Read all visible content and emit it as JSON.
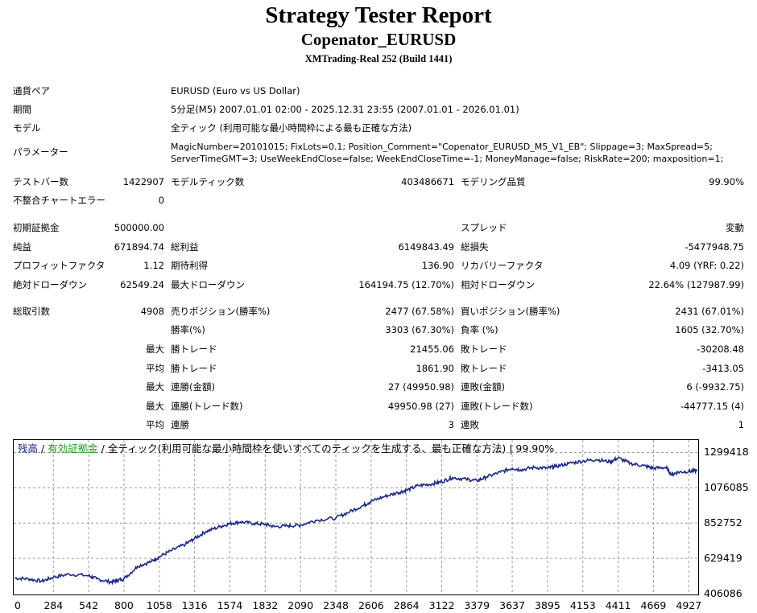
{
  "header": {
    "title": "Strategy Tester Report",
    "expert": "Copenator_EURUSD",
    "server": "XMTrading-Real 252 (Build 1441)"
  },
  "info": {
    "symbol_label": "通貨ペア",
    "symbol_value": "EURUSD (Euro vs US Dollar)",
    "period_label": "期間",
    "period_value": "5分足(M5) 2007.01.01 02:00 - 2025.12.31 23:55 (2007.01.01 - 2026.01.01)",
    "model_label": "モデル",
    "model_value": "全ティック (利用可能な最小時間枠による最も正確な方法)",
    "params_label": "パラメーター",
    "params_line1": "MagicNumber=20101015; FixLots=0.1; Position_Comment=\"Copenator_EURUSD_M5_V1_EB\"; Slippage=3; MaxSpread=5;",
    "params_line2": "ServerTimeGMT=3; UseWeekEndClose=false; WeekEndCloseTime=-1; MoneyManage=false; RiskRate=200; maxposition=1;"
  },
  "stats": {
    "bars_label": "テストバー数",
    "bars_value": "1422907",
    "ticks_label": "モデルティック数",
    "ticks_value": "403486671",
    "quality_label": "モデリング品質",
    "quality_value": "99.90%",
    "mismatch_label": "不整合チャートエラー",
    "mismatch_value": "0",
    "deposit_label": "初期証拠金",
    "deposit_value": "500000.00",
    "spread_label": "スプレッド",
    "spread_value": "変動",
    "net_label": "純益",
    "net_value": "671894.74",
    "gross_profit_label": "総利益",
    "gross_profit_value": "6149843.49",
    "gross_loss_label": "総損失",
    "gross_loss_value": "-5477948.75",
    "pf_label": "プロフィットファクタ",
    "pf_value": "1.12",
    "expected_label": "期待利得",
    "expected_value": "136.90",
    "recovery_label": "リカバリーファクタ",
    "recovery_value": "4.09 (YRF: 0.22)",
    "abs_dd_label": "絶対ドローダウン",
    "abs_dd_value": "62549.24",
    "max_dd_label": "最大ドローダウン",
    "max_dd_value": "164194.75 (12.70%)",
    "rel_dd_label": "相対ドローダウン",
    "rel_dd_value": "22.64% (127987.99)",
    "trades_label": "総取引数",
    "trades_value": "4908",
    "short_label": "売りポジション(勝率%)",
    "short_value": "2477 (67.58%)",
    "long_label": "買いポジション(勝率%)",
    "long_value": "2431 (67.01%)",
    "winrate_label": "勝率(%)",
    "winrate_value": "3303 (67.30%)",
    "lossrate_label": "負率 (%)",
    "lossrate_value": "1605 (32.70%)",
    "largest_label": "最大",
    "largest_win_label": "勝トレード",
    "largest_win_value": "21455.06",
    "largest_loss_label": "敗トレード",
    "largest_loss_value": "-30208.48",
    "average_label": "平均",
    "average_win_label": "勝トレード",
    "average_win_value": "1861.90",
    "average_loss_label": "敗トレード",
    "average_loss_value": "-3413.05",
    "max_cons_label": "最大",
    "max_cons_wins_label": "連勝(金額)",
    "max_cons_wins_value": "27 (49950.98)",
    "max_cons_losses_label": "連敗(金額)",
    "max_cons_losses_value": "6 (-9932.75)",
    "max_cons2_label": "最大",
    "max_cons_profit_label": "連勝(トレード数)",
    "max_cons_profit_value": "49950.98 (27)",
    "max_cons_loss_label": "連敗(トレード数)",
    "max_cons_loss_value": "-44777.15 (4)",
    "avg_cons_label": "平均",
    "avg_cons_wins_label": "連勝",
    "avg_cons_wins_value": "3",
    "avg_cons_losses_label": "連敗",
    "avg_cons_losses_value": "1"
  },
  "chart_data": {
    "type": "line",
    "legend_balance": "残高",
    "legend_equity": "有効証拠金",
    "legend_rest": "全ティック(利用可能な最小時間枠を使いすべてのティックを生成する、最も正確な方法) | 99.90%",
    "legend_sep": " / ",
    "line_color": "#1c2a8a",
    "yticks": [
      "1299418",
      "1076085",
      "852752",
      "629419",
      "406086"
    ],
    "xticks": [
      "0",
      "284",
      "542",
      "800",
      "1058",
      "1316",
      "1574",
      "1832",
      "2090",
      "2348",
      "2606",
      "2864",
      "3122",
      "3379",
      "3637",
      "3895",
      "4153",
      "4411",
      "4669",
      "4927"
    ],
    "ylim": [
      406086,
      1373000
    ],
    "xlim": [
      0,
      4990
    ],
    "series": [
      {
        "x": [
          0,
          100,
          200,
          284,
          400,
          542,
          600,
          700,
          750,
          800,
          900,
          1000,
          1058,
          1150,
          1250,
          1316,
          1400,
          1500,
          1574,
          1650,
          1750,
          1832,
          1900,
          2000,
          2090,
          2200,
          2348,
          2450,
          2550,
          2606,
          2700,
          2800,
          2864,
          2950,
          3050,
          3122,
          3200,
          3300,
          3379,
          3450,
          3550,
          3637,
          3700,
          3800,
          3895,
          3950,
          4050,
          4153,
          4250,
          4350,
          4411,
          4500,
          4600,
          4669,
          4760,
          4800,
          4850,
          4927,
          4990
        ],
        "y": [
          505000,
          500000,
          485000,
          510000,
          530000,
          520000,
          500000,
          480000,
          490000,
          500000,
          580000,
          610000,
          640000,
          680000,
          720000,
          755000,
          800000,
          830000,
          850000,
          860000,
          850000,
          845000,
          830000,
          835000,
          840000,
          870000,
          885000,
          925000,
          965000,
          990000,
          1020000,
          1045000,
          1060000,
          1090000,
          1100000,
          1115000,
          1140000,
          1130000,
          1120000,
          1145000,
          1175000,
          1200000,
          1190000,
          1205000,
          1200000,
          1210000,
          1230000,
          1245000,
          1255000,
          1240000,
          1265000,
          1230000,
          1215000,
          1200000,
          1205000,
          1160000,
          1175000,
          1180000,
          1185000
        ]
      }
    ]
  }
}
